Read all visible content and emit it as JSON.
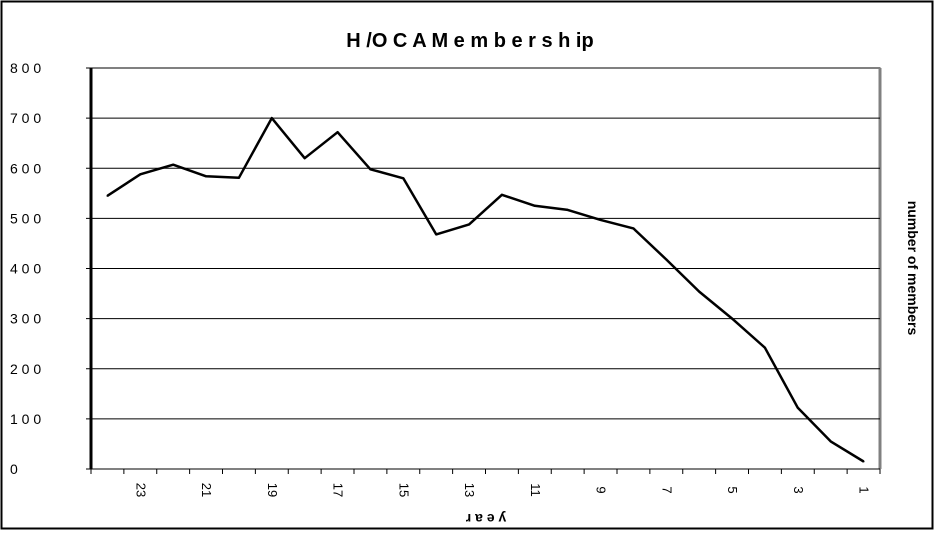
{
  "chart_data": {
    "type": "line",
    "title": "H /O C A  M e m b e r s h ip",
    "xlabel": "y e a r",
    "ylabel": "number of members",
    "ylim": [
      0,
      800
    ],
    "y_ticks": [
      "0",
      "1 0 0",
      "2 0 0",
      "3 0 0",
      "4 0 0",
      "5 0 0",
      "6 0 0",
      "7 0 0",
      "8 0 0"
    ],
    "x_tick_labels": [
      "23",
      "21",
      "19",
      "17",
      "15",
      "13",
      "11",
      "9",
      "7",
      "5",
      "3",
      "1"
    ],
    "grid": true,
    "legend": "none",
    "x": [
      24,
      23,
      22,
      21,
      20,
      19,
      18,
      17,
      16,
      15,
      14,
      13,
      12,
      11,
      10,
      9,
      8,
      7,
      6,
      5,
      4,
      3,
      2,
      1
    ],
    "series": [
      {
        "values": [
          545,
          588,
          607,
          584,
          581,
          700,
          620,
          672,
          598,
          580,
          468,
          488,
          547,
          525,
          517,
          497,
          480,
          418,
          354,
          300,
          242,
          122,
          55,
          15
        ],
        "color": "#000000"
      }
    ]
  }
}
